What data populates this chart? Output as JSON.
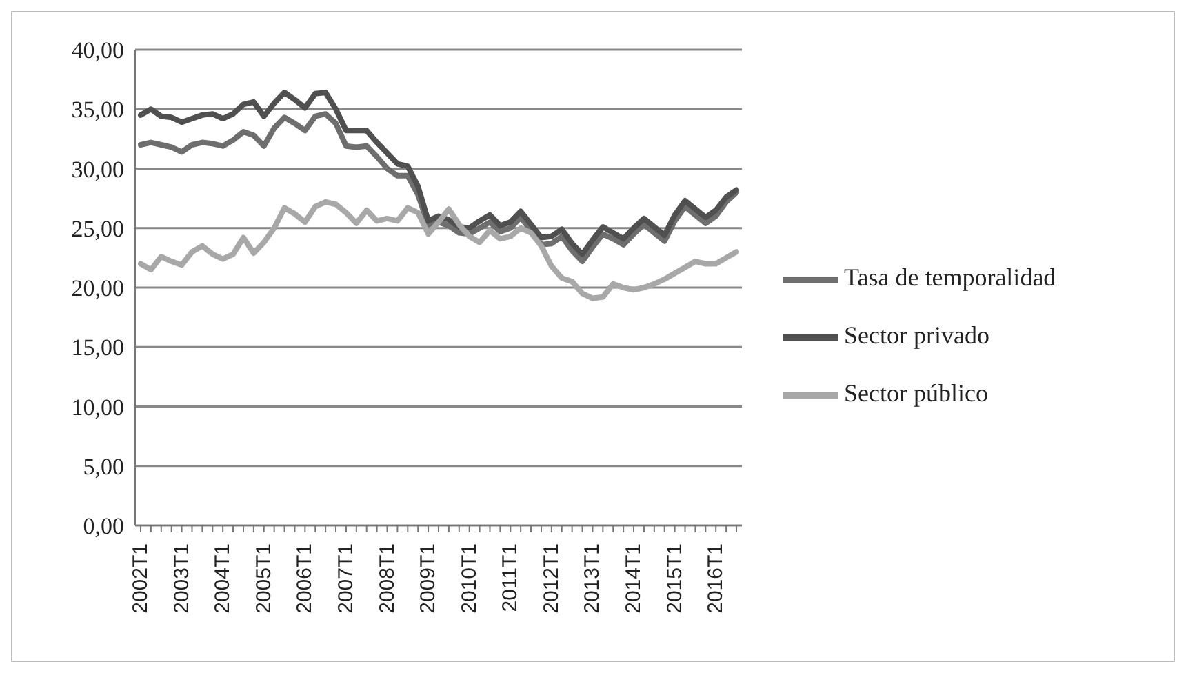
{
  "chart_data": {
    "type": "line",
    "categories": [
      "2002T1",
      null,
      null,
      null,
      "2003T1",
      null,
      null,
      null,
      "2004T1",
      null,
      null,
      null,
      "2005T1",
      null,
      null,
      null,
      "2006T1",
      null,
      null,
      null,
      "2007T1",
      null,
      null,
      null,
      "2008T1",
      null,
      null,
      null,
      "2009T1",
      null,
      null,
      null,
      "2010T1",
      null,
      null,
      null,
      "2011T1",
      null,
      null,
      null,
      "2012T1",
      null,
      null,
      null,
      "2013T1",
      null,
      null,
      null,
      "2014T1",
      null,
      null,
      null,
      "2015T1",
      null,
      null,
      null,
      "2016T1",
      null,
      null
    ],
    "series": [
      {
        "name": "Tasa de temporalidad",
        "color": "#6e6e6e",
        "values": [
          32.0,
          32.2,
          32.0,
          31.8,
          31.4,
          32.0,
          32.2,
          32.1,
          31.9,
          32.4,
          33.1,
          32.8,
          31.9,
          33.4,
          34.3,
          33.8,
          33.2,
          34.4,
          34.6,
          33.8,
          31.9,
          31.8,
          31.9,
          31.0,
          30.0,
          29.4,
          29.4,
          27.8,
          25.3,
          25.5,
          25.2,
          24.6,
          24.5,
          25.0,
          25.5,
          24.7,
          25.0,
          25.9,
          24.8,
          23.6,
          23.7,
          24.3,
          23.1,
          22.2,
          23.4,
          24.5,
          24.1,
          23.6,
          24.5,
          25.3,
          24.6,
          23.9,
          25.6,
          26.8,
          26.1,
          25.4,
          26.0,
          27.2,
          28.0
        ]
      },
      {
        "name": "Sector privado",
        "color": "#505050",
        "values": [
          34.5,
          35.0,
          34.4,
          34.3,
          33.9,
          34.2,
          34.5,
          34.6,
          34.2,
          34.6,
          35.4,
          35.6,
          34.4,
          35.5,
          36.4,
          35.8,
          35.1,
          36.3,
          36.4,
          35.0,
          33.2,
          33.2,
          33.2,
          32.2,
          31.3,
          30.4,
          30.2,
          28.5,
          25.6,
          26.0,
          25.7,
          25.1,
          25.0,
          25.6,
          26.1,
          25.2,
          25.5,
          26.4,
          25.3,
          24.2,
          24.3,
          24.9,
          23.7,
          22.8,
          24.0,
          25.1,
          24.6,
          24.1,
          25.0,
          25.8,
          25.1,
          24.4,
          26.1,
          27.3,
          26.6,
          25.9,
          26.5,
          27.6,
          28.2
        ]
      },
      {
        "name": "Sector público",
        "color": "#a8a8a8",
        "values": [
          22.0,
          21.5,
          22.6,
          22.2,
          21.9,
          23.0,
          23.5,
          22.8,
          22.4,
          22.8,
          24.2,
          22.9,
          23.8,
          25.0,
          26.7,
          26.2,
          25.5,
          26.8,
          27.2,
          27.0,
          26.3,
          25.4,
          26.5,
          25.6,
          25.8,
          25.6,
          26.7,
          26.3,
          24.5,
          25.5,
          26.6,
          25.3,
          24.3,
          23.8,
          24.8,
          24.1,
          24.3,
          25.0,
          24.6,
          23.5,
          21.8,
          20.8,
          20.5,
          19.5,
          19.1,
          19.2,
          20.3,
          20.0,
          19.8,
          20.0,
          20.3,
          20.7,
          21.2,
          21.7,
          22.2,
          22.0,
          22.0,
          22.5,
          23.0
        ]
      }
    ],
    "ylim": [
      0,
      40
    ],
    "yticks": [
      {
        "value": 0,
        "label": "0,00"
      },
      {
        "value": 5,
        "label": "5,00"
      },
      {
        "value": 10,
        "label": "10,00"
      },
      {
        "value": 15,
        "label": "15,00"
      },
      {
        "value": 20,
        "label": "20,00"
      },
      {
        "value": 25,
        "label": "25,00"
      },
      {
        "value": 30,
        "label": "30,00"
      },
      {
        "value": 35,
        "label": "35,00"
      },
      {
        "value": 40,
        "label": "40,00"
      }
    ],
    "grid": "y",
    "legend": "right",
    "marker": "none",
    "line_style": "solid"
  }
}
